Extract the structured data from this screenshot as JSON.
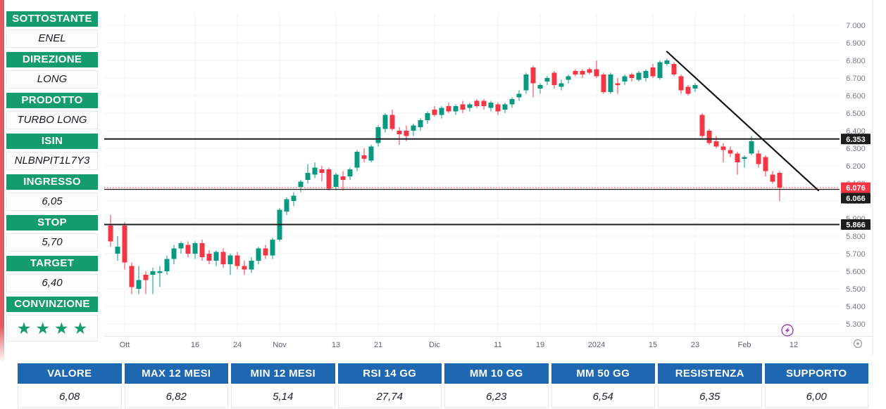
{
  "colors": {
    "sidebar_green": "#149b6e",
    "table_blue": "#1d68b0",
    "left_accent_red": "#e25a60",
    "candle_up": "#089981",
    "candle_down": "#F23645",
    "last_price_red": "#F23645",
    "line_black": "#1c1c1c",
    "axis_text": "#787b86",
    "flash_icon_purple": "#a23dbe"
  },
  "sidebar": {
    "items": [
      {
        "label": "SOTTOSTANTE",
        "value": "ENEL"
      },
      {
        "label": "DIREZIONE",
        "value": "LONG"
      },
      {
        "label": "PRODOTTO",
        "value": "TURBO LONG"
      },
      {
        "label": "ISIN",
        "value": "NLBNPIT1L7Y3"
      },
      {
        "label": "INGRESSO",
        "value": "6,05"
      },
      {
        "label": "STOP",
        "value": "5,70"
      },
      {
        "label": "TARGET",
        "value": "6,40"
      }
    ],
    "conviction": {
      "label": "CONVINZIONE",
      "stars": 4,
      "star_glyph": "★"
    }
  },
  "chart_data": {
    "type": "candlestick",
    "grid": true,
    "ylim": [
      5.28,
      7.06
    ],
    "colors": {
      "up": "#089981",
      "down": "#F23645"
    },
    "y_ticks": [
      {
        "label": "7.000",
        "value": 7.0
      },
      {
        "label": "6.900",
        "value": 6.9
      },
      {
        "label": "6.800",
        "value": 6.8
      },
      {
        "label": "6.700",
        "value": 6.7
      },
      {
        "label": "6.600",
        "value": 6.6
      },
      {
        "label": "6.500",
        "value": 6.5
      },
      {
        "label": "6.400",
        "value": 6.4
      },
      {
        "label": "6.300",
        "value": 6.3
      },
      {
        "label": "6.200",
        "value": 6.2
      },
      {
        "label": "6.100",
        "value": 6.1
      },
      {
        "label": "6.000",
        "value": 6.0
      },
      {
        "label": "5.900",
        "value": 5.9
      },
      {
        "label": "5.800",
        "value": 5.8
      },
      {
        "label": "5.700",
        "value": 5.7
      },
      {
        "label": "5.600",
        "value": 5.6
      },
      {
        "label": "5.500",
        "value": 5.5
      },
      {
        "label": "5.400",
        "value": 5.4
      },
      {
        "label": "5.300",
        "value": 5.3
      }
    ],
    "x_ticks": [
      {
        "label": "Ott",
        "bar": 2
      },
      {
        "label": "16",
        "bar": 12
      },
      {
        "label": "24",
        "bar": 18
      },
      {
        "label": "Nov",
        "bar": 24
      },
      {
        "label": "13",
        "bar": 32
      },
      {
        "label": "21",
        "bar": 38
      },
      {
        "label": "Dic",
        "bar": 46
      },
      {
        "label": "11",
        "bar": 55
      },
      {
        "label": "19",
        "bar": 61
      },
      {
        "label": "2024",
        "bar": 69
      },
      {
        "label": "15",
        "bar": 77
      },
      {
        "label": "23",
        "bar": 83
      },
      {
        "label": "Feb",
        "bar": 90
      },
      {
        "label": "12",
        "bar": 97
      }
    ],
    "price_lines": [
      {
        "price": 6.353,
        "label": "6.353",
        "type": "level",
        "style": "solid",
        "width": 2,
        "label_bg": "#1c1c1c"
      },
      {
        "price": 6.076,
        "label": "6.076",
        "type": "last-price",
        "style": "dotted",
        "width": 1,
        "label_bg": "#F23645"
      },
      {
        "price": 6.066,
        "label": "6.066",
        "type": "level",
        "style": "solid",
        "width": 1.2,
        "label_bg": "#1c1c1c"
      },
      {
        "price": 5.866,
        "label": "5.866",
        "type": "level",
        "style": "solid",
        "width": 2,
        "label_bg": "#1c1c1c"
      }
    ],
    "trendline": {
      "bar1": 79,
      "price1": 6.85,
      "bar2": 100.5,
      "price2": 6.06
    },
    "candles": [
      [
        5.86,
        5.92,
        5.74,
        5.77
      ],
      [
        5.7,
        5.8,
        5.66,
        5.74
      ],
      [
        5.86,
        5.88,
        5.61,
        5.65
      ],
      [
        5.63,
        5.65,
        5.47,
        5.51
      ],
      [
        5.5,
        5.63,
        5.47,
        5.55
      ],
      [
        5.58,
        5.6,
        5.47,
        5.55
      ],
      [
        5.58,
        5.62,
        5.47,
        5.6
      ],
      [
        5.59,
        5.63,
        5.51,
        5.6
      ],
      [
        5.6,
        5.69,
        5.58,
        5.67
      ],
      [
        5.67,
        5.75,
        5.64,
        5.73
      ],
      [
        5.73,
        5.77,
        5.7,
        5.76
      ],
      [
        5.75,
        5.77,
        5.68,
        5.7
      ],
      [
        5.7,
        5.77,
        5.67,
        5.76
      ],
      [
        5.76,
        5.78,
        5.66,
        5.68
      ],
      [
        5.7,
        5.72,
        5.64,
        5.66
      ],
      [
        5.66,
        5.72,
        5.63,
        5.71
      ],
      [
        5.71,
        5.73,
        5.62,
        5.64
      ],
      [
        5.64,
        5.7,
        5.58,
        5.69
      ],
      [
        5.69,
        5.71,
        5.61,
        5.63
      ],
      [
        5.63,
        5.66,
        5.58,
        5.61
      ],
      [
        5.61,
        5.68,
        5.59,
        5.66
      ],
      [
        5.66,
        5.74,
        5.64,
        5.73
      ],
      [
        5.73,
        5.75,
        5.67,
        5.69
      ],
      [
        5.69,
        5.79,
        5.67,
        5.78
      ],
      [
        5.78,
        5.96,
        5.77,
        5.95
      ],
      [
        5.94,
        6.02,
        5.92,
        6.01
      ],
      [
        6.0,
        6.05,
        5.97,
        6.03
      ],
      [
        6.08,
        6.12,
        6.05,
        6.11
      ],
      [
        6.12,
        6.21,
        6.1,
        6.16
      ],
      [
        6.15,
        6.22,
        6.13,
        6.19
      ],
      [
        6.18,
        6.2,
        6.11,
        6.16
      ],
      [
        6.18,
        6.19,
        6.06,
        6.07
      ],
      [
        6.08,
        6.16,
        6.06,
        6.15
      ],
      [
        6.14,
        6.17,
        6.06,
        6.12
      ],
      [
        6.14,
        6.19,
        6.12,
        6.18
      ],
      [
        6.19,
        6.29,
        6.17,
        6.28
      ],
      [
        6.26,
        6.3,
        6.22,
        6.24
      ],
      [
        6.23,
        6.32,
        6.22,
        6.31
      ],
      [
        6.33,
        6.43,
        6.31,
        6.42
      ],
      [
        6.41,
        6.5,
        6.39,
        6.49
      ],
      [
        6.49,
        6.52,
        6.4,
        6.41
      ],
      [
        6.4,
        6.42,
        6.32,
        6.38
      ],
      [
        6.4,
        6.43,
        6.34,
        6.37
      ],
      [
        6.4,
        6.44,
        6.37,
        6.43
      ],
      [
        6.42,
        6.47,
        6.4,
        6.46
      ],
      [
        6.46,
        6.51,
        6.44,
        6.5
      ],
      [
        6.52,
        6.54,
        6.48,
        6.49
      ],
      [
        6.49,
        6.54,
        6.47,
        6.53
      ],
      [
        6.54,
        6.56,
        6.5,
        6.51
      ],
      [
        6.51,
        6.55,
        6.49,
        6.54
      ],
      [
        6.55,
        6.57,
        6.5,
        6.52
      ],
      [
        6.53,
        6.56,
        6.51,
        6.55
      ],
      [
        6.57,
        6.58,
        6.53,
        6.54
      ],
      [
        6.57,
        6.58,
        6.52,
        6.54
      ],
      [
        6.53,
        6.57,
        6.51,
        6.56
      ],
      [
        6.55,
        6.56,
        6.49,
        6.51
      ],
      [
        6.52,
        6.56,
        6.5,
        6.55
      ],
      [
        6.55,
        6.59,
        6.53,
        6.58
      ],
      [
        6.59,
        6.63,
        6.57,
        6.61
      ],
      [
        6.63,
        6.73,
        6.61,
        6.72
      ],
      [
        6.76,
        6.77,
        6.59,
        6.67
      ],
      [
        6.64,
        6.67,
        6.61,
        6.66
      ],
      [
        6.68,
        6.71,
        6.66,
        6.7
      ],
      [
        6.73,
        6.74,
        6.64,
        6.66
      ],
      [
        6.65,
        6.69,
        6.63,
        6.67
      ],
      [
        6.69,
        6.72,
        6.67,
        6.71
      ],
      [
        6.74,
        6.75,
        6.71,
        6.72
      ],
      [
        6.74,
        6.75,
        6.7,
        6.72
      ],
      [
        6.75,
        6.76,
        6.72,
        6.73
      ],
      [
        6.75,
        6.8,
        6.7,
        6.71
      ],
      [
        6.72,
        6.73,
        6.61,
        6.62
      ],
      [
        6.62,
        6.73,
        6.61,
        6.72
      ],
      [
        6.67,
        6.7,
        6.61,
        6.66
      ],
      [
        6.68,
        6.72,
        6.66,
        6.71
      ],
      [
        6.72,
        6.73,
        6.68,
        6.7
      ],
      [
        6.69,
        6.74,
        6.68,
        6.73
      ],
      [
        6.7,
        6.75,
        6.68,
        6.74
      ],
      [
        6.76,
        6.78,
        6.7,
        6.71
      ],
      [
        6.7,
        6.8,
        6.69,
        6.79
      ],
      [
        6.78,
        6.81,
        6.77,
        6.8
      ],
      [
        6.78,
        6.79,
        6.71,
        6.72
      ],
      [
        6.71,
        6.72,
        6.61,
        6.63
      ],
      [
        6.65,
        6.66,
        6.6,
        6.61
      ],
      [
        6.64,
        6.67,
        6.62,
        6.66
      ],
      [
        6.49,
        6.5,
        6.36,
        6.37
      ],
      [
        6.4,
        6.41,
        6.32,
        6.33
      ],
      [
        6.34,
        6.37,
        6.3,
        6.31
      ],
      [
        6.31,
        6.33,
        6.22,
        6.29
      ],
      [
        6.29,
        6.31,
        6.25,
        6.27
      ],
      [
        6.27,
        6.28,
        6.15,
        6.22
      ],
      [
        6.24,
        6.26,
        6.19,
        6.25
      ],
      [
        6.27,
        6.37,
        6.26,
        6.34
      ],
      [
        6.27,
        6.29,
        6.19,
        6.21
      ],
      [
        6.25,
        6.26,
        6.14,
        6.17
      ],
      [
        6.15,
        6.17,
        6.1,
        6.11
      ],
      [
        6.16,
        6.17,
        6.0,
        6.076
      ]
    ],
    "markers": [
      {
        "icon": "flash-circle",
        "bar": 96
      }
    ]
  },
  "stats_table": {
    "columns": [
      {
        "header": "VALORE",
        "value": "6,08"
      },
      {
        "header": "MAX 12 MESI",
        "value": "6,82"
      },
      {
        "header": "MIN 12 MESI",
        "value": "5,14"
      },
      {
        "header": "RSI 14 GG",
        "value": "27,74"
      },
      {
        "header": "MM 10 GG",
        "value": "6,23"
      },
      {
        "header": "MM 50 GG",
        "value": "6,54"
      },
      {
        "header": "RESISTENZA",
        "value": "6,35"
      },
      {
        "header": "SUPPORTO",
        "value": "6,00"
      }
    ]
  },
  "icons": {
    "flash": "lightning-bolt-in-circle",
    "axis_corner": "circled-dot"
  }
}
